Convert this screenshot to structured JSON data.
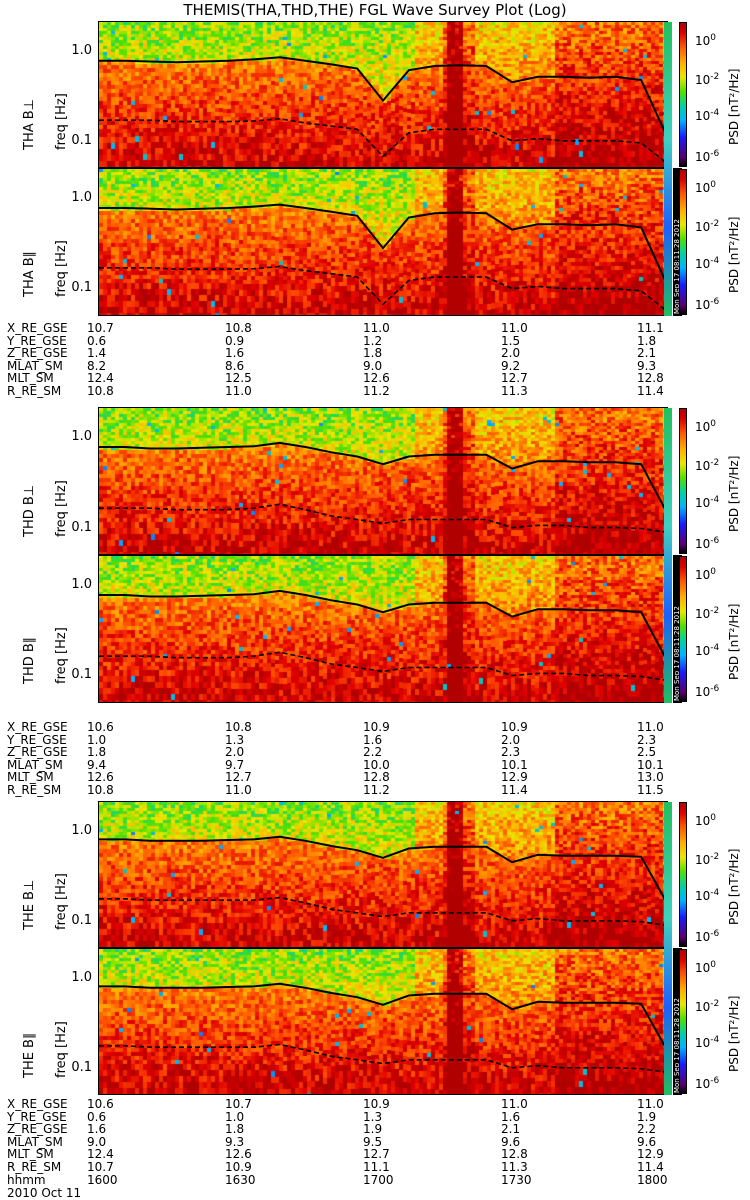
{
  "title": "THEMIS(THA,THD,THE) FGL Wave Survey Plot (Log)",
  "date_label": "2010 Oct 11",
  "stamp_text": "Mon Sep 17 08:11:28 2012",
  "freq_label": "freq [Hz]",
  "psd_label": "PSD [nT²/Hz]",
  "colorbar_ticks": [
    "10^0",
    "10^-2",
    "10^-4",
    "10^-6"
  ],
  "colors": {
    "background": "#ffffff",
    "cbar_high": "#b00000",
    "cbar_low": "#000000",
    "lines": "#000000"
  },
  "chart_data": [
    {
      "type": "heatmap",
      "probe": "THA",
      "panels": [
        {
          "name": "THA B⊥",
          "component": "perp"
        },
        {
          "name": "THA B∥",
          "component": "par"
        }
      ],
      "y_ticks": [
        "1.0",
        "0.1"
      ],
      "ylim": [
        0.055,
        1.5
      ],
      "ylog": true,
      "x_range": [
        "1600",
        "1800"
      ],
      "line_solid_hz": [
        0.62,
        0.62,
        0.61,
        0.6,
        0.61,
        0.62,
        0.64,
        0.67,
        0.62,
        0.57,
        0.52,
        0.25,
        0.5,
        0.55,
        0.56,
        0.55,
        0.38,
        0.43,
        0.43,
        0.42,
        0.43,
        0.4,
        0.11
      ],
      "line_dashed_hz": [
        0.16,
        0.16,
        0.16,
        0.155,
        0.155,
        0.155,
        0.157,
        0.165,
        0.15,
        0.14,
        0.13,
        0.07,
        0.12,
        0.13,
        0.13,
        0.13,
        0.1,
        0.105,
        0.1,
        0.1,
        0.1,
        0.095,
        0.06
      ],
      "ephemeris": {
        "labels": [
          "X_RE_GSE",
          "Y_RE_GSE",
          "Z_RE_GSE",
          "MLAT_SM",
          "MLT_SM",
          "R_RE_SM"
        ],
        "values": [
          [
            "10.7",
            "10.8",
            "11.0",
            "11.0",
            "11.1"
          ],
          [
            "0.6",
            "0.9",
            "1.2",
            "1.5",
            "1.8"
          ],
          [
            "1.4",
            "1.6",
            "1.8",
            "2.0",
            "2.1"
          ],
          [
            "8.2",
            "8.6",
            "9.0",
            "9.2",
            "9.3"
          ],
          [
            "12.4",
            "12.5",
            "12.6",
            "12.7",
            "12.8"
          ],
          [
            "10.8",
            "11.0",
            "11.2",
            "11.3",
            "11.4"
          ]
        ]
      }
    },
    {
      "type": "heatmap",
      "probe": "THD",
      "panels": [
        {
          "name": "THD B⊥",
          "component": "perp"
        },
        {
          "name": "THD B∥",
          "component": "par"
        }
      ],
      "y_ticks": [
        "1.0",
        "0.1"
      ],
      "ylim": [
        0.055,
        1.5
      ],
      "ylog": true,
      "x_range": [
        "1600",
        "1800"
      ],
      "line_solid_hz": [
        0.62,
        0.62,
        0.6,
        0.6,
        0.61,
        0.62,
        0.63,
        0.68,
        0.62,
        0.55,
        0.5,
        0.42,
        0.5,
        0.52,
        0.52,
        0.52,
        0.38,
        0.45,
        0.45,
        0.44,
        0.44,
        0.42,
        0.14
      ],
      "line_dashed_hz": [
        0.155,
        0.155,
        0.155,
        0.15,
        0.15,
        0.15,
        0.155,
        0.17,
        0.15,
        0.13,
        0.12,
        0.11,
        0.12,
        0.12,
        0.12,
        0.12,
        0.1,
        0.105,
        0.105,
        0.1,
        0.1,
        0.098,
        0.09
      ],
      "ephemeris": {
        "labels": [
          "X_RE_GSE",
          "Y_RE_GSE",
          "Z_RE_GSE",
          "MLAT_SM",
          "MLT_SM",
          "R_RE_SM"
        ],
        "values": [
          [
            "10.6",
            "10.8",
            "10.9",
            "10.9",
            "11.0"
          ],
          [
            "1.0",
            "1.3",
            "1.6",
            "2.0",
            "2.3"
          ],
          [
            "1.8",
            "2.0",
            "2.2",
            "2.3",
            "2.5"
          ],
          [
            "9.4",
            "9.7",
            "10.0",
            "10.1",
            "10.1"
          ],
          [
            "12.6",
            "12.7",
            "12.8",
            "12.9",
            "13.0"
          ],
          [
            "10.8",
            "11.0",
            "11.2",
            "11.4",
            "11.5"
          ]
        ]
      }
    },
    {
      "type": "heatmap",
      "probe": "THE",
      "panels": [
        {
          "name": "THE B⊥",
          "component": "perp"
        },
        {
          "name": "THE B∥",
          "component": "par"
        }
      ],
      "y_ticks": [
        "1.0",
        "0.1"
      ],
      "ylim": [
        0.055,
        1.5
      ],
      "ylog": true,
      "x_range": [
        "1600",
        "1800"
      ],
      "line_solid_hz": [
        0.64,
        0.64,
        0.62,
        0.62,
        0.62,
        0.63,
        0.64,
        0.68,
        0.62,
        0.55,
        0.5,
        0.42,
        0.52,
        0.54,
        0.54,
        0.54,
        0.38,
        0.45,
        0.44,
        0.44,
        0.44,
        0.43,
        0.15
      ],
      "line_dashed_hz": [
        0.165,
        0.165,
        0.16,
        0.16,
        0.16,
        0.16,
        0.16,
        0.17,
        0.15,
        0.13,
        0.12,
        0.11,
        0.12,
        0.12,
        0.12,
        0.12,
        0.1,
        0.105,
        0.1,
        0.1,
        0.1,
        0.098,
        0.09
      ],
      "ephemeris": {
        "labels": [
          "X_RE_GSE",
          "Y_RE_GSE",
          "Z_RE_GSE",
          "MLAT_SM",
          "MLT_SM",
          "R_RE_SM",
          "hhmm"
        ],
        "values": [
          [
            "10.6",
            "10.7",
            "10.9",
            "11.0",
            "11.0"
          ],
          [
            "0.6",
            "1.0",
            "1.3",
            "1.6",
            "1.9"
          ],
          [
            "1.6",
            "1.8",
            "1.9",
            "2.1",
            "2.2"
          ],
          [
            "9.0",
            "9.3",
            "9.5",
            "9.6",
            "9.6"
          ],
          [
            "12.4",
            "12.6",
            "12.7",
            "12.8",
            "12.9"
          ],
          [
            "10.7",
            "10.9",
            "11.1",
            "11.3",
            "11.4"
          ],
          [
            "1600",
            "1630",
            "1700",
            "1730",
            "1800"
          ]
        ]
      }
    }
  ]
}
